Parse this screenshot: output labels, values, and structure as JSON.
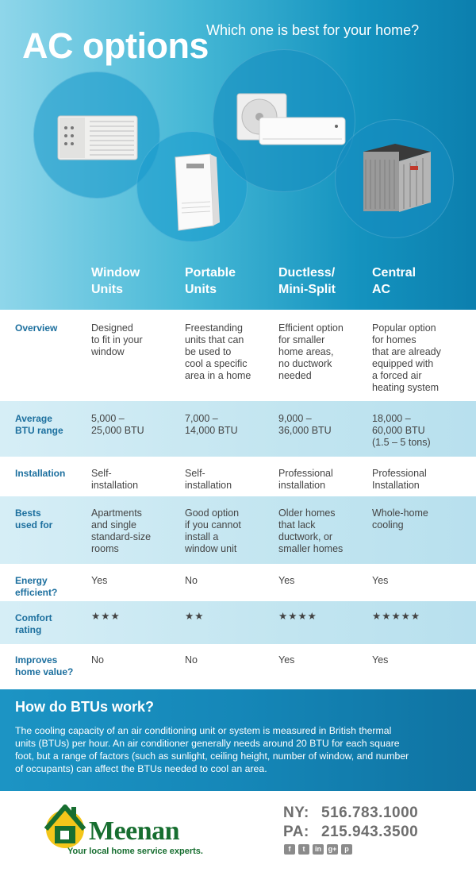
{
  "hero": {
    "title": "AC options",
    "subtitle": "Which one is best for your home?"
  },
  "columns": [
    {
      "line1": "Window",
      "line2": "Units"
    },
    {
      "line1": "Portable",
      "line2": "Units"
    },
    {
      "line1": "Ductless/",
      "line2": "Mini-Split"
    },
    {
      "line1": "Central",
      "line2": "AC"
    }
  ],
  "rows": [
    {
      "label": [
        "Overview"
      ],
      "cells": [
        [
          "Designed",
          "to fit in your",
          "window"
        ],
        [
          "Freestanding",
          "units that can",
          "be used to",
          "cool a specific",
          "area in a home"
        ],
        [
          "Efficient option",
          "for smaller",
          "home areas,",
          "no ductwork",
          "needed"
        ],
        [
          "Popular option",
          "for homes",
          "that are already",
          "equipped with",
          "a forced air",
          "heating system"
        ]
      ]
    },
    {
      "label": [
        "Average",
        "BTU range"
      ],
      "cells": [
        [
          "5,000 –",
          "25,000 BTU"
        ],
        [
          "7,000 –",
          "14,000 BTU"
        ],
        [
          "9,000 –",
          "36,000 BTU"
        ],
        [
          "18,000 –",
          "60,000 BTU",
          "(1.5 – 5 tons)"
        ]
      ]
    },
    {
      "label": [
        "Installation"
      ],
      "cells": [
        [
          "Self-",
          "installation"
        ],
        [
          "Self-",
          "installation"
        ],
        [
          "Professional",
          "installation"
        ],
        [
          "Professional",
          "Installation"
        ]
      ]
    },
    {
      "label": [
        "Bests",
        "used for"
      ],
      "cells": [
        [
          "Apartments",
          "and single",
          "standard-size",
          "rooms"
        ],
        [
          "Good option",
          "if you cannot",
          "install a",
          "window unit"
        ],
        [
          "Older homes",
          "that lack",
          "ductwork, or",
          "smaller homes"
        ],
        [
          "Whole-home",
          "cooling"
        ]
      ]
    },
    {
      "label": [
        "Energy",
        "efficient?"
      ],
      "cells": [
        [
          "Yes"
        ],
        [
          "No"
        ],
        [
          "Yes"
        ],
        [
          "Yes"
        ]
      ]
    },
    {
      "label": [
        "Comfort",
        "rating"
      ],
      "ratings": [
        3,
        2,
        4,
        5
      ],
      "star_glyph": "★"
    },
    {
      "label": [
        "Improves",
        "home value?"
      ],
      "cells": [
        [
          "No"
        ],
        [
          "No"
        ],
        [
          "Yes"
        ],
        [
          "Yes"
        ]
      ]
    }
  ],
  "btu": {
    "title": "How do BTUs work?",
    "lines": [
      "The cooling capacity of an air conditioning unit or system is measured in British thermal",
      "units (BTUs) per hour. An air conditioner generally needs around 20 BTU for each square",
      "foot, but a range of factors (such as sunlight, ceiling height, number of window, and number",
      "of occupants) can affect the BTUs needed to cool an area."
    ]
  },
  "footer": {
    "brand": "Meenan",
    "tagline": "Your local home service experts.",
    "phones": [
      {
        "label": "NY:",
        "number": "516.783.1000"
      },
      {
        "label": "PA:",
        "number": "215.943.3500"
      }
    ],
    "social": [
      "facebook-icon",
      "twitter-icon",
      "linkedin-icon",
      "google-plus-icon",
      "pinterest-icon"
    ]
  },
  "colors": {
    "accent": "#1c6f9e",
    "hero_blue": "#1493bf",
    "brand_green": "#176e30"
  }
}
